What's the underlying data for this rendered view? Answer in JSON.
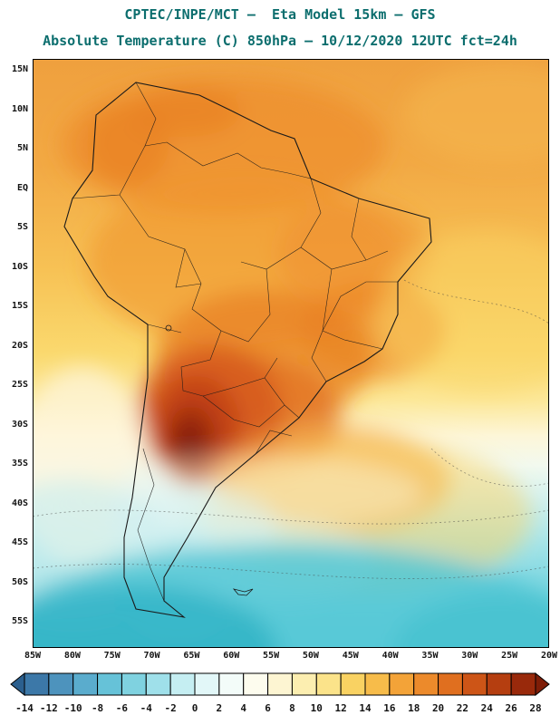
{
  "title": {
    "line1": "CPTEC/INPE/MCT —  Eta Model 15km — GFS",
    "line2": "Absolute Temperature (C) 850hPa — 10/12/2020 12UTC fct=24h"
  },
  "map": {
    "lat_labels": [
      "15N",
      "10N",
      "5N",
      "EQ",
      "5S",
      "10S",
      "15S",
      "20S",
      "25S",
      "30S",
      "35S",
      "40S",
      "45S",
      "50S",
      "55S"
    ],
    "lon_labels": [
      "85W",
      "80W",
      "75W",
      "70W",
      "65W",
      "60W",
      "55W",
      "50W",
      "45W",
      "40W",
      "35W",
      "30W",
      "25W",
      "20W"
    ]
  },
  "colors": {
    "background": "#ffffff",
    "title_text": "#0c6e6e",
    "axis_text": "#141414",
    "map_outline": "#1a1a1a"
  },
  "chart_data": {
    "type": "heatmap",
    "institution": "CPTEC/INPE/MCT",
    "model": "Eta Model 15km — GFS",
    "variable": "Absolute Temperature",
    "unit": "C",
    "level": "850hPa",
    "valid": "10/12/2020 12UTC",
    "forecast": "fct=24h",
    "x_ticks": [
      "85W",
      "80W",
      "75W",
      "70W",
      "65W",
      "60W",
      "55W",
      "50W",
      "45W",
      "40W",
      "35W",
      "30W",
      "25W",
      "20W"
    ],
    "y_ticks": [
      "15N",
      "10N",
      "5N",
      "EQ",
      "5S",
      "10S",
      "15S",
      "20S",
      "25S",
      "30S",
      "35S",
      "40S",
      "45S",
      "50S",
      "55S"
    ],
    "bounds": {
      "lon": [
        "85W",
        "20W"
      ],
      "lat": [
        "15N",
        "55S"
      ]
    },
    "colorbar": {
      "unit": "C",
      "ticks": [
        -14,
        -12,
        -10,
        -8,
        -6,
        -4,
        -2,
        0,
        2,
        4,
        6,
        8,
        10,
        12,
        14,
        16,
        18,
        20,
        22,
        24,
        26,
        28
      ],
      "colors": [
        "#2b5f8e",
        "#3c78a8",
        "#4d93bd",
        "#5aaccd",
        "#66c2d8",
        "#7fd2e0",
        "#9fe0ea",
        "#c5eef2",
        "#e2f7f8",
        "#f3fcf9",
        "#fdfcee",
        "#fdf5d2",
        "#fceeb0",
        "#fbe38a",
        "#f9d262",
        "#f7bc4a",
        "#f3a338",
        "#ec8a2b",
        "#e06f1f",
        "#cd5517",
        "#b53e10",
        "#99290b",
        "#7e1d07"
      ]
    },
    "field_summary": [
      {
        "region": "Gran Chaco / northern Argentina (~27S 63W)",
        "approx_temp_c": "26 to >28",
        "note": "warm core maximum (dark red)"
      },
      {
        "region": "Amazon basin and central Brazil",
        "approx_temp_c": "18 to 24"
      },
      {
        "region": "tropical Atlantic and Pacific north of 20S",
        "approx_temp_c": "14 to 22"
      },
      {
        "region": "subtropical South Atlantic 30S-40S",
        "approx_temp_c": "6 to 14"
      },
      {
        "region": "Patagonia and oceans south of 40S",
        "approx_temp_c": "-2 to 6",
        "note": "cold sector (cyan shading)"
      }
    ]
  }
}
